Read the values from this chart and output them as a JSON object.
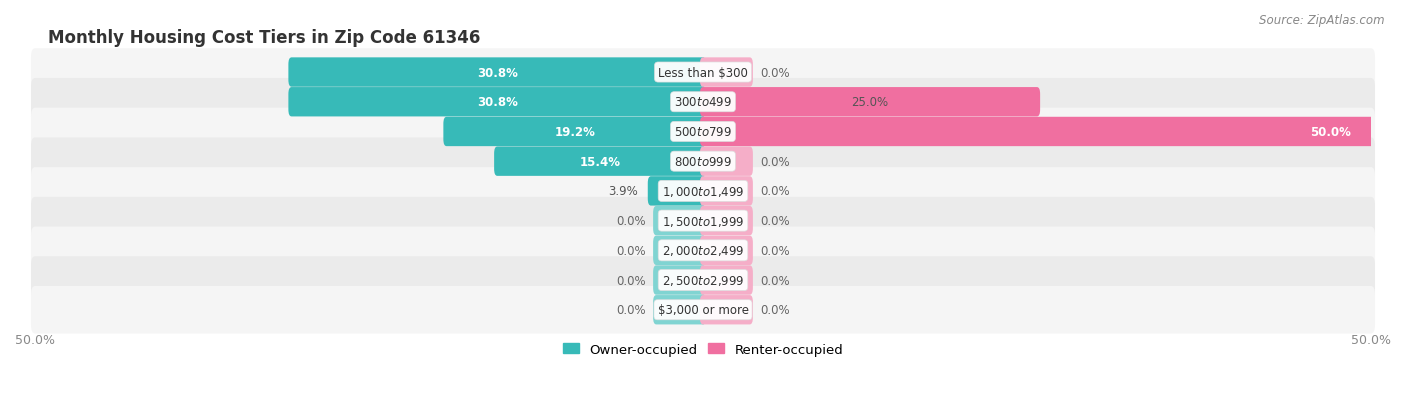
{
  "title": "Monthly Housing Cost Tiers in Zip Code 61346",
  "source": "Source: ZipAtlas.com",
  "categories": [
    "Less than $300",
    "$300 to $499",
    "$500 to $799",
    "$800 to $999",
    "$1,000 to $1,499",
    "$1,500 to $1,999",
    "$2,000 to $2,499",
    "$2,500 to $2,999",
    "$3,000 or more"
  ],
  "owner_values": [
    30.8,
    30.8,
    19.2,
    15.4,
    3.9,
    0.0,
    0.0,
    0.0,
    0.0
  ],
  "renter_values": [
    0.0,
    25.0,
    50.0,
    0.0,
    0.0,
    0.0,
    0.0,
    0.0,
    0.0
  ],
  "owner_color": "#37bab8",
  "renter_color": "#f06fa0",
  "owner_color_zero": "#80d4d2",
  "renter_color_zero": "#f5aec8",
  "row_bg_odd": "#f5f5f5",
  "row_bg_even": "#ebebeb",
  "axis_max": 50.0,
  "title_fontsize": 12,
  "source_fontsize": 8.5,
  "label_fontsize": 8.5,
  "tick_fontsize": 9,
  "legend_fontsize": 9.5,
  "zero_stub": 3.5
}
